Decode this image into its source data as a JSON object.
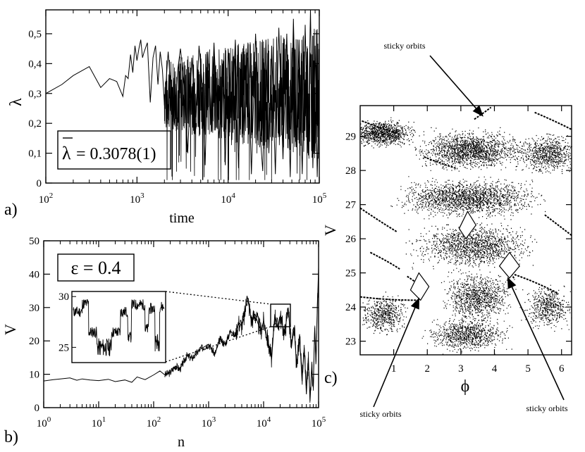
{
  "chart_data": [
    {
      "panel": "a)",
      "type": "line",
      "title": "",
      "xlabel": "time",
      "ylabel": "λ",
      "xscale": "log",
      "xlim": [
        100,
        100000
      ],
      "ylim": [
        0,
        0.58
      ],
      "xticks": [
        {
          "value": 100,
          "base": "10",
          "exp": "2"
        },
        {
          "value": 1000,
          "base": "10",
          "exp": "3"
        },
        {
          "value": 10000,
          "base": "10",
          "exp": "4"
        },
        {
          "value": 100000,
          "base": "10",
          "exp": "5"
        }
      ],
      "yticks": [
        {
          "value": 0,
          "label": "0"
        },
        {
          "value": 0.1,
          "label": "0,1"
        },
        {
          "value": 0.2,
          "label": "0,2"
        },
        {
          "value": 0.3,
          "label": "0,3"
        },
        {
          "value": 0.4,
          "label": "0,4"
        },
        {
          "value": 0.5,
          "label": "0,5"
        }
      ],
      "legend_symbol": "λ",
      "legend_value": "= 0.3078(1)",
      "mean_lambda": 0.3078,
      "series": [
        {
          "name": "λ(time)",
          "x": [
            100,
            150,
            200,
            300,
            400,
            500,
            600,
            700,
            750,
            800,
            850,
            900,
            950,
            1000,
            1050,
            1100,
            1150,
            1200,
            1300,
            1400,
            1500,
            1600,
            1700,
            1800,
            1900,
            2000,
            2200,
            2400,
            2600,
            2800,
            3000,
            3300,
            3600,
            4000,
            4400,
            4800,
            5200,
            5600,
            6000,
            6500,
            7000,
            7500,
            8000,
            8600,
            9300,
            10000,
            11000,
            12000,
            13000,
            14000,
            15000,
            16500,
            18000,
            20000,
            22000,
            24000,
            26000,
            28000,
            30000,
            33000,
            36000,
            40000,
            44000,
            48000,
            52000,
            56000,
            60000,
            65000,
            70000,
            75000,
            80000,
            85000,
            90000,
            95000,
            100000
          ],
          "y": [
            0.3,
            0.33,
            0.36,
            0.39,
            0.32,
            0.35,
            0.34,
            0.29,
            0.36,
            0.35,
            0.43,
            0.37,
            0.46,
            0.41,
            0.45,
            0.48,
            0.42,
            0.44,
            0.47,
            0.27,
            0.42,
            0.46,
            0.33,
            0.44,
            0.38,
            0.26,
            0.44,
            0.28,
            0.2,
            0.38,
            0.45,
            0.33,
            0.1,
            0.42,
            0.22,
            0.46,
            0.33,
            0.06,
            0.44,
            0.2,
            0.47,
            0.26,
            0.15,
            0.4,
            0.06,
            0.45,
            0.22,
            0.48,
            0.05,
            0.43,
            0.16,
            0.47,
            0.03,
            0.5,
            0.2,
            0.04,
            0.48,
            0.1,
            0.46,
            0.03,
            0.52,
            0.08,
            0.5,
            0.02,
            0.55,
            0.12,
            0.48,
            0.03,
            0.53,
            0.1,
            0.58,
            0.05,
            0.46,
            0.02,
            0.32
          ]
        }
      ]
    },
    {
      "panel": "b)",
      "type": "line",
      "xlabel": "n",
      "ylabel": "V",
      "xscale": "log",
      "xlim": [
        1,
        100000
      ],
      "ylim": [
        0,
        50
      ],
      "xticks": [
        {
          "value": 1,
          "base": "10",
          "exp": "0"
        },
        {
          "value": 10,
          "base": "10",
          "exp": "1"
        },
        {
          "value": 100,
          "base": "10",
          "exp": "2"
        },
        {
          "value": 1000,
          "base": "10",
          "exp": "3"
        },
        {
          "value": 10000,
          "base": "10",
          "exp": "4"
        },
        {
          "value": 100000,
          "base": "10",
          "exp": "5"
        }
      ],
      "yticks": [
        {
          "value": 0,
          "label": "0"
        },
        {
          "value": 10,
          "label": "10"
        },
        {
          "value": 20,
          "label": "20"
        },
        {
          "value": 30,
          "label": "30"
        },
        {
          "value": 40,
          "label": "40"
        },
        {
          "value": 50,
          "label": "50"
        }
      ],
      "box_label": "ε = 0.4",
      "series": [
        {
          "name": "V(n)",
          "x": [
            1,
            1.5,
            2,
            3,
            4,
            5,
            7,
            10,
            15,
            20,
            30,
            40,
            50,
            70,
            100,
            130,
            160,
            200,
            250,
            300,
            400,
            500,
            700,
            1000,
            1300,
            1600,
            2000,
            2500,
            3000,
            3500,
            4000,
            4500,
            5000,
            5500,
            6000,
            7000,
            8000,
            9000,
            10000,
            12000,
            14000,
            16000,
            18000,
            20000,
            24000,
            28000,
            32000,
            36000,
            40000,
            45000,
            50000,
            55000,
            60000,
            65000,
            70000,
            75000,
            80000,
            85000,
            90000,
            95000,
            100000
          ],
          "y": [
            8.0,
            8.4,
            8.6,
            8.9,
            8.2,
            8.6,
            8.3,
            8.1,
            8.5,
            7.8,
            8.3,
            7.6,
            9.2,
            8.4,
            9.8,
            11.0,
            9.8,
            10.5,
            12.5,
            11.5,
            15.5,
            14.8,
            17.5,
            19.0,
            16.0,
            20.5,
            19.0,
            23.0,
            21.5,
            25.5,
            24.5,
            27.5,
            33.5,
            30.0,
            26.0,
            28.0,
            25.0,
            23.0,
            26.0,
            20.0,
            14.5,
            28.0,
            24.0,
            27.5,
            22.0,
            30.0,
            18.0,
            24.0,
            12.0,
            22.0,
            8.0,
            18.0,
            4.0,
            15.0,
            2.0,
            12.0,
            6.0,
            24.0,
            14.0,
            30.0,
            42.0
          ]
        }
      ],
      "zoom_box": {
        "xrange": [
          15000,
          30000
        ],
        "yrange": [
          24,
          31
        ]
      },
      "inset": {
        "ylim": [
          23.5,
          30.5
        ],
        "yticks": [
          {
            "value": 25,
            "label": "25"
          },
          {
            "value": 30,
            "label": "30"
          }
        ]
      }
    },
    {
      "panel": "c)",
      "type": "scatter",
      "xlabel": "ϕ",
      "ylabel": "V",
      "xlim": [
        0,
        6.3
      ],
      "ylim": [
        22.6,
        29.9
      ],
      "xticks": [
        {
          "value": 1,
          "label": "1"
        },
        {
          "value": 2,
          "label": "2"
        },
        {
          "value": 3,
          "label": "3"
        },
        {
          "value": 4,
          "label": "4"
        },
        {
          "value": 5,
          "label": "5"
        },
        {
          "value": 6,
          "label": "6"
        }
      ],
      "yticks": [
        {
          "value": 23,
          "label": "23"
        },
        {
          "value": 24,
          "label": "24"
        },
        {
          "value": 25,
          "label": "25"
        },
        {
          "value": 26,
          "label": "26"
        },
        {
          "value": 27,
          "label": "27"
        },
        {
          "value": 28,
          "label": "28"
        },
        {
          "value": 29,
          "label": "29"
        }
      ],
      "annotations": [
        {
          "text": "sticky orbits",
          "target": [
            3.65,
            29.6
          ]
        },
        {
          "text": "sticky orbits",
          "target": [
            1.75,
            24.25
          ]
        },
        {
          "text": "sticky orbits",
          "target": [
            4.4,
            24.85
          ]
        }
      ],
      "point_count_approx": 9000,
      "chaotic_sea_bands": [
        {
          "center": [
            0.6,
            29.1
          ],
          "spread": [
            1.2,
            0.5
          ],
          "weight": 900
        },
        {
          "center": [
            3.3,
            28.6
          ],
          "spread": [
            2.0,
            0.7
          ],
          "weight": 1500
        },
        {
          "center": [
            5.6,
            28.5
          ],
          "spread": [
            1.2,
            0.7
          ],
          "weight": 700
        },
        {
          "center": [
            3.2,
            27.2
          ],
          "spread": [
            2.6,
            0.7
          ],
          "weight": 1700
        },
        {
          "center": [
            3.3,
            25.8
          ],
          "spread": [
            2.2,
            0.8
          ],
          "weight": 1300
        },
        {
          "center": [
            3.5,
            24.3
          ],
          "spread": [
            1.2,
            0.9
          ],
          "weight": 900
        },
        {
          "center": [
            3.2,
            23.2
          ],
          "spread": [
            1.5,
            0.6
          ],
          "weight": 800
        },
        {
          "center": [
            5.6,
            24.0
          ],
          "spread": [
            0.9,
            0.8
          ],
          "weight": 500
        },
        {
          "center": [
            0.7,
            23.8
          ],
          "spread": [
            0.9,
            0.7
          ],
          "weight": 500
        }
      ]
    }
  ]
}
